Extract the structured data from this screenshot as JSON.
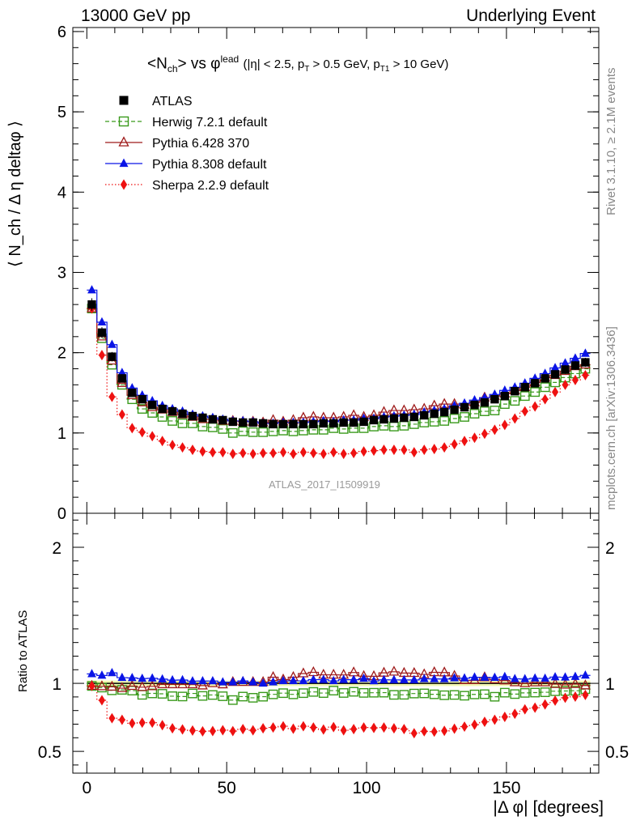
{
  "header": {
    "left": "13000 GeV pp",
    "right": "Underlying Event"
  },
  "side": {
    "rivet": "Rivet 3.1.10, ≥ 2.1M events",
    "mcplots": "mcplots.cern.ch [arXiv:1306.3436]"
  },
  "plot_title": {
    "main": "<N",
    "main_sub": "ch",
    "main_rest": "> vs φ",
    "main_sup": "lead",
    "cuts": "(|η| < 2.5, p",
    "cuts_sub1": "T",
    "cuts_mid": " > 0.5 GeV, p",
    "cuts_sub2": "T1",
    "cuts_end": " > 10 GeV)"
  },
  "watermark": "ATLAS_2017_I1509919",
  "y_label_main": "⟨ N_ch / Δ η deltaφ ⟩",
  "y_label_ratio": "Ratio to ATLAS",
  "x_label": "|Δ φ| [degrees]",
  "colors": {
    "atlas": "#000000",
    "herwig": "#3a9a1c",
    "pythia6": "#9e1a1a",
    "pythia8": "#0a14e6",
    "sherpa": "#ee1111",
    "band": "#f2f8b0"
  },
  "chart_data": {
    "type": "scatter",
    "x": [
      1.8,
      5.4,
      9.0,
      12.6,
      16.2,
      19.8,
      23.4,
      27.0,
      30.6,
      34.2,
      37.8,
      41.4,
      45.0,
      48.6,
      52.2,
      55.8,
      59.4,
      63.0,
      66.6,
      70.2,
      73.8,
      77.4,
      81.0,
      84.6,
      88.2,
      91.8,
      95.4,
      99.0,
      102.6,
      106.2,
      109.8,
      113.4,
      117.0,
      120.6,
      124.2,
      127.8,
      131.4,
      135.0,
      138.6,
      142.2,
      145.8,
      149.4,
      153.0,
      156.6,
      160.2,
      163.8,
      167.4,
      171.0,
      174.6,
      178.2
    ],
    "xlim": [
      -5,
      183
    ],
    "x_ticks": [
      "0",
      "50",
      "100",
      "150"
    ],
    "main_panel": {
      "ylim": [
        0,
        6.05
      ],
      "y_ticks": [
        "0",
        "1",
        "2",
        "3",
        "4",
        "5",
        "6"
      ]
    },
    "ratio_panel": {
      "ylim": [
        0.34,
        2.25
      ],
      "y_ticks": [
        "0.5",
        "1",
        "2"
      ]
    },
    "series": [
      {
        "name": "ATLAS",
        "marker": "square-filled",
        "line": "none",
        "values": [
          2.6,
          2.25,
          1.95,
          1.68,
          1.5,
          1.42,
          1.35,
          1.3,
          1.27,
          1.24,
          1.21,
          1.19,
          1.17,
          1.16,
          1.14,
          1.13,
          1.13,
          1.12,
          1.11,
          1.11,
          1.11,
          1.11,
          1.11,
          1.12,
          1.12,
          1.13,
          1.13,
          1.14,
          1.16,
          1.17,
          1.18,
          1.19,
          1.2,
          1.22,
          1.24,
          1.26,
          1.29,
          1.32,
          1.35,
          1.38,
          1.42,
          1.46,
          1.52,
          1.57,
          1.62,
          1.68,
          1.73,
          1.79,
          1.84,
          1.88
        ]
      },
      {
        "name": "Herwig 7.2.1 default",
        "marker": "square-open",
        "line": "dashed",
        "values": [
          2.55,
          2.18,
          1.85,
          1.6,
          1.42,
          1.3,
          1.25,
          1.2,
          1.15,
          1.12,
          1.12,
          1.08,
          1.07,
          1.05,
          1.0,
          1.02,
          1.01,
          1.01,
          1.02,
          1.03,
          1.02,
          1.03,
          1.04,
          1.04,
          1.06,
          1.05,
          1.06,
          1.06,
          1.08,
          1.09,
          1.08,
          1.09,
          1.11,
          1.13,
          1.14,
          1.15,
          1.18,
          1.2,
          1.24,
          1.27,
          1.28,
          1.36,
          1.4,
          1.46,
          1.51,
          1.57,
          1.63,
          1.69,
          1.74,
          1.8
        ]
      },
      {
        "name": "Pythia 6.428 370",
        "marker": "triangle-open",
        "line": "solid",
        "values": [
          2.55,
          2.2,
          1.9,
          1.62,
          1.47,
          1.38,
          1.32,
          1.29,
          1.26,
          1.23,
          1.2,
          1.17,
          1.17,
          1.15,
          1.15,
          1.14,
          1.14,
          1.13,
          1.16,
          1.14,
          1.16,
          1.19,
          1.2,
          1.19,
          1.19,
          1.2,
          1.22,
          1.2,
          1.22,
          1.26,
          1.28,
          1.28,
          1.29,
          1.3,
          1.34,
          1.36,
          1.36,
          1.35,
          1.38,
          1.44,
          1.46,
          1.49,
          1.53,
          1.57,
          1.63,
          1.69,
          1.72,
          1.77,
          1.83,
          1.85
        ]
      },
      {
        "name": "Pythia 8.308 default",
        "marker": "triangle-filled",
        "line": "solid",
        "values": [
          2.78,
          2.38,
          2.1,
          1.75,
          1.56,
          1.47,
          1.4,
          1.34,
          1.3,
          1.27,
          1.23,
          1.21,
          1.19,
          1.17,
          1.15,
          1.15,
          1.14,
          1.12,
          1.12,
          1.13,
          1.13,
          1.13,
          1.14,
          1.15,
          1.14,
          1.16,
          1.16,
          1.18,
          1.18,
          1.2,
          1.21,
          1.22,
          1.23,
          1.26,
          1.28,
          1.3,
          1.34,
          1.37,
          1.41,
          1.44,
          1.48,
          1.53,
          1.57,
          1.62,
          1.68,
          1.74,
          1.81,
          1.87,
          1.93,
          1.99
        ]
      },
      {
        "name": "Sherpa 2.2.9 default",
        "marker": "diamond-filled",
        "line": "dotted",
        "values": [
          2.55,
          1.97,
          1.45,
          1.23,
          1.06,
          1.01,
          0.96,
          0.9,
          0.85,
          0.82,
          0.79,
          0.77,
          0.76,
          0.76,
          0.74,
          0.75,
          0.74,
          0.75,
          0.75,
          0.76,
          0.74,
          0.76,
          0.75,
          0.74,
          0.76,
          0.74,
          0.75,
          0.77,
          0.78,
          0.79,
          0.79,
          0.79,
          0.76,
          0.79,
          0.8,
          0.82,
          0.86,
          0.9,
          0.94,
          0.99,
          1.04,
          1.1,
          1.18,
          1.27,
          1.33,
          1.42,
          1.51,
          1.6,
          1.66,
          1.72
        ]
      }
    ]
  }
}
